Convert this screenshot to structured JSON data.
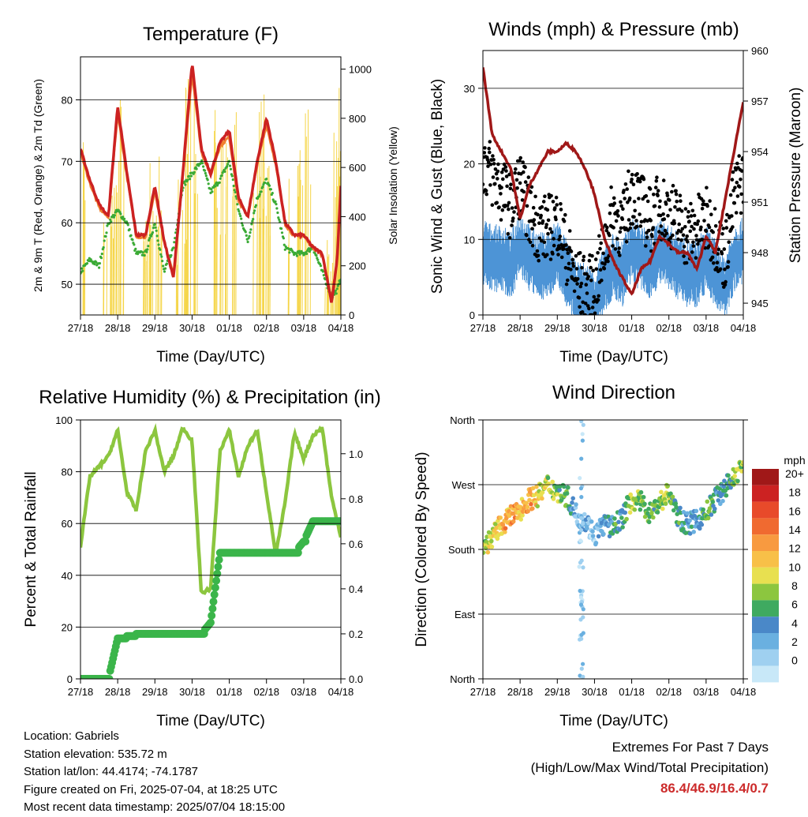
{
  "xticks": [
    "27/18",
    "28/18",
    "29/18",
    "30/18",
    "01/18",
    "02/18",
    "03/18",
    "04/18"
  ],
  "xlabel": "Time (Day/UTC)",
  "colors": {
    "temp2m": "#cc2222",
    "temp9m": "#f08030",
    "dew": "#3aaa35",
    "solar": "#f5d547",
    "gust": "#000000",
    "wind": "#4d94d6",
    "pressure": "#a01818",
    "rh": "#8cc63f",
    "precip": "#3bb54a"
  },
  "panels": {
    "temp": {
      "title": "Temperature (F)",
      "ylabel_left": "2m & 9m T (Red, Orange) & 2m Td (Green)",
      "ylabel_right": "Solar Insolation (Yellow)",
      "left_ticks": [
        "50",
        "60",
        "70",
        "80"
      ],
      "right_ticks": [
        "0",
        "200",
        "400",
        "600",
        "800",
        "1000"
      ]
    },
    "wind": {
      "title": "Winds (mph) & Pressure (mb)",
      "ylabel_left": "Sonic Wind & Gust (Blue, Black)",
      "ylabel_right": "Station Pressure (Maroon)",
      "left_ticks": [
        "0",
        "10",
        "20",
        "30"
      ],
      "right_ticks": [
        "945",
        "948",
        "951",
        "954",
        "957",
        "960"
      ]
    },
    "rh": {
      "title": "Relative Humidity (%) & Precipitation (in)",
      "ylabel_left": "Percent & Total Rainfall",
      "left_ticks": [
        "0",
        "20",
        "40",
        "60",
        "80",
        "100"
      ],
      "right_ticks": [
        "0.0",
        "0.2",
        "0.4",
        "0.6",
        "0.8",
        "1.0"
      ]
    },
    "dir": {
      "title": "Wind Direction",
      "ylabel_left": "Direction (Colored By Speed)",
      "left_ticks": [
        "North",
        "East",
        "South",
        "West",
        "North"
      ],
      "legend_title": "mph",
      "legend_labels": [
        "20+",
        "18",
        "16",
        "14",
        "12",
        "10",
        "8",
        "6",
        "4",
        "2",
        "0"
      ],
      "legend_colors": [
        "#a01818",
        "#cc2222",
        "#e84a2a",
        "#f06a30",
        "#f89a40",
        "#f8c048",
        "#e8e050",
        "#8cc63f",
        "#3faa60",
        "#4a88c8",
        "#6ab0e0",
        "#9fd0f0",
        "#c8e8f8"
      ]
    }
  },
  "chart_data": [
    {
      "type": "line",
      "title": "Temperature (F)",
      "xlabel": "Time (Day/UTC)",
      "ylabel": "2m & 9m T (Red, Orange) & 2m Td (Green)",
      "ylabel_right": "Solar Insolation (Yellow)",
      "x": [
        0,
        0.25,
        0.5,
        0.75,
        1,
        1.25,
        1.5,
        1.75,
        2,
        2.25,
        2.5,
        2.75,
        3,
        3.25,
        3.5,
        3.75,
        4,
        4.25,
        4.5,
        4.75,
        5,
        5.25,
        5.5,
        5.75,
        6,
        6.25,
        6.5,
        6.75,
        6.9,
        7
      ],
      "ylim": [
        45,
        87
      ],
      "ylim_right": [
        0,
        1050
      ],
      "series": [
        {
          "name": "2m T",
          "axis": "left",
          "values": [
            72,
            67,
            63,
            61,
            79,
            68,
            58,
            58,
            66,
            57,
            51,
            68,
            86,
            72,
            68,
            73,
            75,
            64,
            61,
            70,
            77,
            70,
            60,
            58,
            58,
            56,
            55,
            47,
            54,
            66
          ]
        },
        {
          "name": "9m T",
          "axis": "left",
          "values": [
            71.5,
            66.5,
            62.5,
            60.8,
            78,
            67.5,
            57.8,
            57.6,
            65.2,
            56.8,
            51.5,
            67.5,
            84.5,
            71.5,
            67.8,
            72.5,
            74,
            63.5,
            61,
            69.5,
            76,
            69.5,
            59.8,
            57.8,
            57.8,
            56,
            54.8,
            47.5,
            54,
            65.5
          ]
        },
        {
          "name": "2m Td",
          "axis": "left",
          "values": [
            52,
            54,
            53,
            60,
            62,
            60,
            55,
            55,
            60,
            52,
            56,
            66,
            68,
            70,
            65,
            67,
            70,
            62,
            57,
            64,
            67,
            63,
            56,
            55,
            55,
            56,
            52,
            48,
            49,
            51
          ]
        },
        {
          "name": "Solar",
          "axis": "right",
          "values": [
            920,
            0,
            0,
            550,
            920,
            0,
            0,
            480,
            700,
            0,
            0,
            580,
            980,
            0,
            0,
            880,
            850,
            0,
            0,
            900,
            880,
            0,
            0,
            650,
            850,
            0,
            0,
            320,
            780,
            1000
          ]
        }
      ]
    },
    {
      "type": "line",
      "title": "Winds (mph) & Pressure (mb)",
      "xlabel": "Time (Day/UTC)",
      "ylabel": "Sonic Wind & Gust (Blue, Black)",
      "ylabel_right": "Station Pressure (Maroon)",
      "x": [
        0,
        0.25,
        0.5,
        0.75,
        1,
        1.25,
        1.5,
        1.75,
        2,
        2.25,
        2.5,
        2.75,
        3,
        3.25,
        3.5,
        3.75,
        4,
        4.25,
        4.5,
        4.75,
        5,
        5.25,
        5.5,
        5.75,
        6,
        6.25,
        6.5,
        6.75,
        7
      ],
      "ylim": [
        0,
        35
      ],
      "ylim_right": [
        944.3,
        960
      ],
      "series": [
        {
          "name": "Sonic Wind",
          "axis": "left",
          "values": [
            9,
            8,
            8,
            7,
            10,
            8,
            7,
            7,
            9,
            6,
            3,
            3,
            2,
            5,
            7,
            6,
            9,
            8,
            7,
            9,
            8,
            7,
            6,
            6,
            8,
            6,
            4,
            8,
            9
          ]
        },
        {
          "name": "Gust",
          "axis": "left",
          "values": [
            22,
            20,
            18,
            16,
            19,
            15,
            13,
            13,
            14,
            10,
            6,
            5,
            5,
            10,
            15,
            13,
            18,
            16,
            14,
            16,
            15,
            14,
            12,
            13,
            14,
            12,
            9,
            17,
            20
          ]
        },
        {
          "name": "Station Pressure",
          "axis": "right",
          "values": [
            959,
            955,
            954,
            953,
            950,
            952,
            953,
            954,
            954,
            954.5,
            954,
            953,
            951.5,
            949,
            947.5,
            946.5,
            945.5,
            947,
            947.5,
            949,
            948.5,
            948,
            948,
            947,
            949,
            948,
            951,
            954,
            957
          ]
        }
      ]
    },
    {
      "type": "line",
      "title": "Relative Humidity (%) & Precipitation (in)",
      "xlabel": "Time (Day/UTC)",
      "ylabel": "Percent & Total Rainfall",
      "x": [
        0,
        0.25,
        0.5,
        0.75,
        1,
        1.25,
        1.5,
        1.75,
        2,
        2.25,
        2.5,
        2.75,
        3,
        3.25,
        3.5,
        3.75,
        4,
        4.25,
        4.5,
        4.75,
        5,
        5.25,
        5.5,
        5.75,
        6,
        6.25,
        6.5,
        6.75,
        7
      ],
      "ylim": [
        0,
        100
      ],
      "ylim_right": [
        0,
        1.15
      ],
      "series": [
        {
          "name": "RH",
          "axis": "left",
          "values": [
            51,
            78,
            82,
            86,
            96,
            72,
            65,
            88,
            96,
            80,
            86,
            97,
            92,
            33,
            35,
            88,
            96,
            78,
            90,
            96,
            72,
            48,
            68,
            95,
            85,
            94,
            97,
            70,
            55
          ]
        },
        {
          "name": "Total Rainfall",
          "axis": "right",
          "values": [
            0,
            0,
            0,
            0,
            0.18,
            0.19,
            0.2,
            0.2,
            0.2,
            0.2,
            0.2,
            0.2,
            0.2,
            0.2,
            0.25,
            0.56,
            0.56,
            0.56,
            0.56,
            0.56,
            0.56,
            0.56,
            0.56,
            0.56,
            0.61,
            0.7,
            0.7,
            0.7,
            0.7
          ]
        }
      ]
    },
    {
      "type": "scatter",
      "title": "Wind Direction",
      "xlabel": "Time (Day/UTC)",
      "ylabel": "Direction (Colored By Speed)",
      "x": [
        0,
        0.25,
        0.5,
        0.75,
        1,
        1.25,
        1.5,
        1.75,
        2,
        2.25,
        2.5,
        2.75,
        3,
        3.25,
        3.5,
        3.75,
        4,
        4.25,
        4.5,
        4.75,
        5,
        5.25,
        5.5,
        5.75,
        6,
        6.25,
        6.5,
        6.75,
        7
      ],
      "ylim": [
        0,
        360
      ],
      "series": [
        {
          "name": "Direction (deg)",
          "values": [
            185,
            195,
            215,
            225,
            235,
            250,
            255,
            270,
            260,
            255,
            230,
            220,
            200,
            215,
            210,
            225,
            250,
            245,
            230,
            245,
            260,
            225,
            215,
            220,
            230,
            250,
            265,
            280,
            300
          ]
        },
        {
          "name": "Speed (mph)",
          "values": [
            8,
            10,
            12,
            13,
            12,
            13,
            10,
            9,
            8,
            7,
            3,
            3,
            2,
            4,
            6,
            5,
            9,
            8,
            7,
            8,
            8,
            6,
            5,
            4,
            7,
            6,
            5,
            8,
            9
          ]
        }
      ]
    }
  ],
  "info": {
    "location": "Location: Gabriels",
    "elevation": "Station elevation: 535.72 m",
    "latlon": "Station lat/lon: 44.4174; -74.1787",
    "created": "Figure created on Fri, 2025-07-04, at 18:25 UTC",
    "recent": "Most recent data timestamp: 2025/07/04 18:15:00"
  },
  "extremes": {
    "title": "Extremes For Past 7 Days",
    "subtitle": "(High/Low/Max Wind/Total Precipitation)",
    "values": "86.4/46.9/16.4/0.7"
  }
}
